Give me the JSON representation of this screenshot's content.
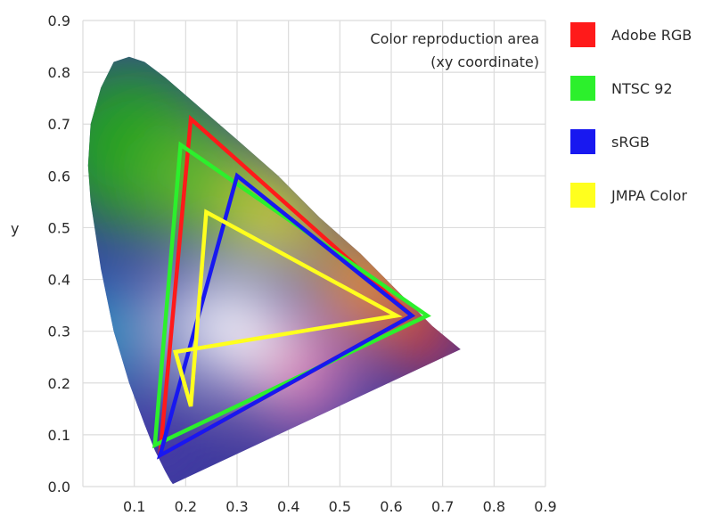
{
  "chart_data": {
    "type": "line",
    "xlim": [
      0,
      0.9
    ],
    "ylim": [
      0,
      0.9
    ],
    "x_ticks": [
      "0.1",
      "0.2",
      "0.3",
      "0.4",
      "0.5",
      "0.6",
      "0.7",
      "0.8",
      "0.9"
    ],
    "y_ticks": [
      "0.0",
      "0.1",
      "0.2",
      "0.3",
      "0.4",
      "0.5",
      "0.6",
      "0.7",
      "0.8",
      "0.9"
    ],
    "ylabel": "y",
    "xlabel": "",
    "grid": true,
    "annotation_line1": "Color reproduction area",
    "annotation_line2": "(xy coordinate)",
    "legend_placement": "right",
    "spectral_locus": [
      [
        0.175,
        0.005
      ],
      [
        0.17,
        0.012
      ],
      [
        0.16,
        0.03
      ],
      [
        0.14,
        0.07
      ],
      [
        0.12,
        0.12
      ],
      [
        0.09,
        0.2
      ],
      [
        0.06,
        0.3
      ],
      [
        0.035,
        0.42
      ],
      [
        0.015,
        0.55
      ],
      [
        0.01,
        0.62
      ],
      [
        0.015,
        0.7
      ],
      [
        0.035,
        0.77
      ],
      [
        0.06,
        0.82
      ],
      [
        0.09,
        0.83
      ],
      [
        0.12,
        0.82
      ],
      [
        0.16,
        0.79
      ],
      [
        0.23,
        0.73
      ],
      [
        0.3,
        0.67
      ],
      [
        0.38,
        0.6
      ],
      [
        0.46,
        0.52
      ],
      [
        0.54,
        0.45
      ],
      [
        0.62,
        0.37
      ],
      [
        0.68,
        0.31
      ],
      [
        0.735,
        0.265
      ]
    ],
    "series": [
      {
        "name": "Adobe RGB",
        "color": "#ff1a1a",
        "points": [
          [
            0.21,
            0.71
          ],
          [
            0.64,
            0.33
          ],
          [
            0.15,
            0.06
          ]
        ]
      },
      {
        "name": "NTSC 92",
        "color": "#2cf02c",
        "points": [
          [
            0.19,
            0.66
          ],
          [
            0.67,
            0.33
          ],
          [
            0.14,
            0.08
          ]
        ]
      },
      {
        "name": "sRGB",
        "color": "#1818f0",
        "points": [
          [
            0.3,
            0.6
          ],
          [
            0.64,
            0.33
          ],
          [
            0.15,
            0.06
          ]
        ]
      },
      {
        "name": "JMPA Color",
        "color": "#ffff1e",
        "points": [
          [
            0.24,
            0.53
          ],
          [
            0.61,
            0.33
          ],
          [
            0.18,
            0.26
          ],
          [
            0.21,
            0.155
          ]
        ]
      }
    ]
  }
}
